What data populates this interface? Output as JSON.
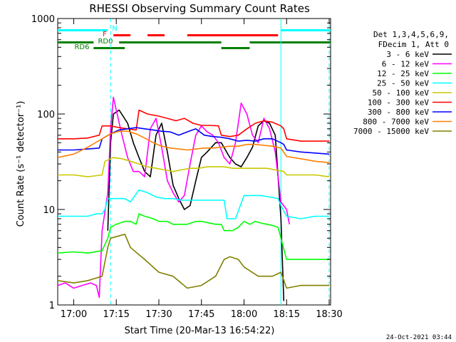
{
  "chart_data": {
    "type": "line",
    "title": "RHESSI Observing Summary Count Rates",
    "xlabel": "Start Time (20-Mar-13 16:54:22)",
    "ylabel": "Count Rate (s⁻¹ detector⁻¹)",
    "yscale": "log",
    "ylim": [
      1,
      1000
    ],
    "xlim": [
      "16:54:22",
      "18:30:30"
    ],
    "x_ticks": [
      "17:00",
      "17:15",
      "17:30",
      "17:45",
      "18:00",
      "18:15",
      "18:30"
    ],
    "y_ticks": [
      "1",
      "10",
      "100",
      "1000"
    ],
    "legend_header": [
      "Det 1,3,4,5,6,9,",
      "FDecim 1, Att 0"
    ],
    "legend_position": "right",
    "footer_date": "24-Oct-2021 03:44",
    "flag_labels": {
      "n": "N",
      "f": "F",
      "rd0": "RD0",
      "rd6": "RD6"
    },
    "flag_bars": {
      "night": {
        "color": "#00ffff",
        "segments": [
          [
            "16:54:22",
            "17:12"
          ],
          [
            "18:13",
            "18:30:30"
          ]
        ]
      },
      "flare": {
        "color": "#ff0000",
        "segments": [
          [
            "17:14",
            "17:20"
          ],
          [
            "17:26",
            "17:32"
          ],
          [
            "17:40",
            "18:12"
          ]
        ]
      },
      "decim0": {
        "color": "#008000",
        "segments": [
          [
            "16:54:22",
            "17:07"
          ],
          [
            "17:16",
            "17:52"
          ],
          [
            "18:02",
            "18:30:30"
          ]
        ]
      },
      "decim6": {
        "color": "#008000",
        "segments": [
          [
            "17:07",
            "17:18"
          ],
          [
            "17:52",
            "18:02"
          ]
        ]
      }
    },
    "vlines_dashed": [
      "17:13",
      "18:30"
    ],
    "vlines_solid": [
      "18:13"
    ],
    "series": [
      {
        "name": "3 - 6 keV",
        "color": "#000000",
        "x": [
          "17:12",
          "17:13",
          "17:14",
          "17:16",
          "17:19",
          "17:21",
          "17:23",
          "17:25",
          "17:27",
          "17:29",
          "17:31",
          "17:33",
          "17:35",
          "17:37",
          "17:39",
          "17:41",
          "17:43",
          "17:45",
          "17:47",
          "17:50",
          "17:52",
          "17:55",
          "17:57",
          "17:59",
          "18:01",
          "18:03",
          "18:05",
          "18:07",
          "18:09",
          "18:11",
          "18:13",
          "18:14"
        ],
        "values": [
          6,
          50,
          100,
          110,
          80,
          50,
          35,
          25,
          22,
          60,
          80,
          40,
          18,
          13,
          10,
          11,
          20,
          35,
          40,
          50,
          50,
          35,
          30,
          28,
          35,
          45,
          75,
          85,
          80,
          60,
          8,
          1.1
        ]
      },
      {
        "name": "6 - 12 keV",
        "color": "#ff00ff",
        "x": [
          "16:54:22",
          "16:57",
          "17:00",
          "17:03",
          "17:06",
          "17:08",
          "17:09",
          "17:10",
          "17:12",
          "17:13",
          "17:14",
          "17:15",
          "17:17",
          "17:19",
          "17:21",
          "17:23",
          "17:25",
          "17:27",
          "17:29",
          "17:31",
          "17:33",
          "17:35",
          "17:37",
          "17:39",
          "17:41",
          "17:43",
          "17:45",
          "17:47",
          "17:49",
          "17:51",
          "17:53",
          "17:55",
          "17:57",
          "17:59",
          "18:01",
          "18:03",
          "18:05",
          "18:07",
          "18:09",
          "18:11",
          "18:13",
          "18:15",
          "18:16"
        ],
        "values": [
          1.6,
          1.7,
          1.5,
          1.6,
          1.7,
          1.6,
          1.2,
          6,
          15,
          70,
          150,
          110,
          60,
          35,
          25,
          25,
          22,
          70,
          90,
          45,
          20,
          15,
          12,
          14,
          30,
          60,
          75,
          65,
          60,
          50,
          35,
          30,
          50,
          130,
          100,
          60,
          50,
          90,
          70,
          40,
          12,
          10,
          7
        ]
      },
      {
        "name": "12 - 25 keV",
        "color": "#00ff00",
        "x": [
          "16:54:22",
          "17:00",
          "17:05",
          "17:10",
          "17:12",
          "17:13",
          "17:15",
          "17:18",
          "17:20",
          "17:22",
          "17:23",
          "17:25",
          "17:28",
          "17:30",
          "17:33",
          "17:35",
          "17:38",
          "17:40",
          "17:43",
          "17:45",
          "17:47",
          "17:50",
          "17:52",
          "17:53",
          "17:56",
          "17:58",
          "18:00",
          "18:02",
          "18:04",
          "18:06",
          "18:08",
          "18:10",
          "18:12",
          "18:13",
          "18:15",
          "18:20",
          "18:25",
          "18:30"
        ],
        "values": [
          3.5,
          3.6,
          3.5,
          3.7,
          5,
          6.5,
          7,
          7.5,
          7.5,
          7,
          9,
          8.5,
          8,
          7.5,
          7.5,
          7,
          7,
          7,
          7.5,
          7.5,
          7.3,
          7,
          7,
          6,
          6,
          6.5,
          7.5,
          7,
          7.5,
          7.2,
          7,
          6.8,
          6.5,
          5,
          3,
          3,
          3,
          3
        ]
      },
      {
        "name": "25 - 50 keV",
        "color": "#00ffff",
        "x": [
          "16:54:22",
          "17:00",
          "17:05",
          "17:08",
          "17:10",
          "17:11",
          "17:12",
          "17:15",
          "17:18",
          "17:20",
          "17:23",
          "17:26",
          "17:29",
          "17:32",
          "17:35",
          "17:38",
          "17:41",
          "17:44",
          "17:47",
          "17:50",
          "17:53",
          "17:54",
          "17:57",
          "18:00",
          "18:03",
          "18:06",
          "18:09",
          "18:12",
          "18:13",
          "18:15",
          "18:20",
          "18:25",
          "18:30"
        ],
        "values": [
          8.5,
          8.5,
          8.5,
          9,
          9,
          10,
          13,
          13,
          13,
          12,
          16,
          15,
          13.5,
          13,
          13,
          12.5,
          12.5,
          12.5,
          12.5,
          12.5,
          12.5,
          8,
          8,
          14,
          14,
          14,
          13.5,
          13,
          11,
          8.5,
          8,
          8.5,
          8.5
        ]
      },
      {
        "name": "50 - 100 keV",
        "color": "#c8c800",
        "x": [
          "16:54:22",
          "17:00",
          "17:05",
          "17:10",
          "17:11",
          "17:14",
          "17:17",
          "17:20",
          "17:23",
          "17:26",
          "17:29",
          "17:32",
          "17:35",
          "17:38",
          "17:41",
          "17:44",
          "17:47",
          "17:50",
          "17:53",
          "17:56",
          "17:59",
          "18:02",
          "18:05",
          "18:08",
          "18:11",
          "18:14",
          "18:15",
          "18:20",
          "18:25",
          "18:30"
        ],
        "values": [
          23,
          23,
          22,
          23,
          32,
          35,
          34,
          32,
          30,
          28,
          27,
          26,
          25,
          26,
          27,
          27,
          28,
          28,
          28,
          27,
          27,
          27,
          27,
          27,
          26,
          25,
          23,
          23,
          23,
          22
        ]
      },
      {
        "name": "100 - 300 keV",
        "color": "#ff0000",
        "x": [
          "16:54:22",
          "17:00",
          "17:05",
          "17:09",
          "17:10",
          "17:13",
          "17:16",
          "17:19",
          "17:22",
          "17:23",
          "17:26",
          "17:30",
          "17:33",
          "17:36",
          "17:39",
          "17:42",
          "17:45",
          "17:48",
          "17:51",
          "17:52",
          "17:55",
          "17:58",
          "18:01",
          "18:04",
          "18:07",
          "18:10",
          "18:13",
          "18:14",
          "18:15",
          "18:20",
          "18:25",
          "18:30"
        ],
        "values": [
          55,
          55,
          56,
          60,
          75,
          75,
          72,
          70,
          68,
          110,
          100,
          95,
          90,
          85,
          90,
          80,
          76,
          76,
          75,
          60,
          58,
          60,
          70,
          80,
          85,
          82,
          75,
          70,
          55,
          52,
          52,
          52
        ]
      },
      {
        "name": "300 - 800 keV",
        "color": "#0000ff",
        "x": [
          "16:54:22",
          "17:00",
          "17:05",
          "17:09",
          "17:10",
          "17:13",
          "17:16",
          "17:19",
          "17:22",
          "17:25",
          "17:28",
          "17:31",
          "17:34",
          "17:37",
          "17:40",
          "17:43",
          "17:46",
          "17:49",
          "17:52",
          "17:55",
          "17:58",
          "18:01",
          "18:04",
          "18:07",
          "18:10",
          "18:13",
          "18:14",
          "18:15",
          "18:20",
          "18:25",
          "18:30"
        ],
        "values": [
          42,
          42,
          43,
          44,
          55,
          62,
          68,
          70,
          72,
          70,
          68,
          66,
          65,
          60,
          65,
          70,
          60,
          58,
          57,
          55,
          52,
          53,
          52,
          55,
          55,
          50,
          48,
          42,
          40,
          39,
          38
        ]
      },
      {
        "name": "800 - 7000 keV",
        "color": "#ff8000",
        "x": [
          "16:54:22",
          "17:00",
          "17:05",
          "17:10",
          "17:13",
          "17:16",
          "17:19",
          "17:22",
          "17:25",
          "17:28",
          "17:31",
          "17:34",
          "17:37",
          "17:40",
          "17:43",
          "17:46",
          "17:49",
          "17:52",
          "17:55",
          "17:58",
          "18:01",
          "18:04",
          "18:07",
          "18:10",
          "18:13",
          "18:15",
          "18:20",
          "18:25",
          "18:30"
        ],
        "values": [
          35,
          38,
          45,
          55,
          62,
          66,
          66,
          62,
          56,
          50,
          46,
          44,
          43,
          42,
          43,
          44,
          44,
          45,
          46,
          46,
          48,
          48,
          47,
          46,
          44,
          36,
          34,
          32,
          31
        ]
      },
      {
        "name": "7000 - 15000 keV",
        "color": "#808000",
        "x": [
          "16:54:22",
          "17:00",
          "17:05",
          "17:10",
          "17:12",
          "17:13",
          "17:18",
          "17:20",
          "17:25",
          "17:30",
          "17:35",
          "17:40",
          "17:45",
          "17:50",
          "17:53",
          "17:55",
          "17:58",
          "18:00",
          "18:05",
          "18:10",
          "18:13",
          "18:15",
          "18:20",
          "18:25",
          "18:30"
        ],
        "values": [
          1.8,
          1.7,
          1.8,
          2.0,
          4,
          5,
          5.5,
          4,
          3,
          2.2,
          2,
          1.5,
          1.6,
          2,
          3,
          3.2,
          3,
          2.5,
          2,
          2,
          2.2,
          1.5,
          1.6,
          1.6,
          1.6
        ]
      }
    ]
  }
}
